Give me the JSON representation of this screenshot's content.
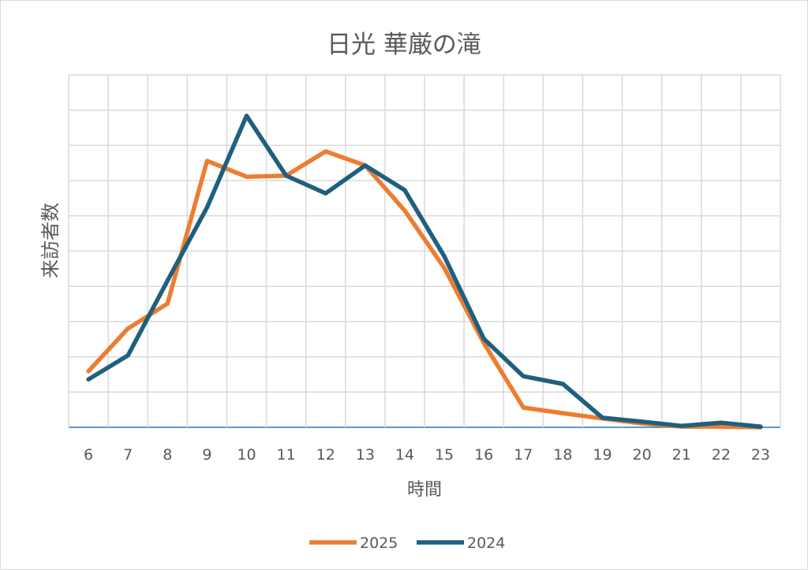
{
  "chart_data": {
    "type": "line",
    "title": "日光 華厳の滝",
    "xlabel": "時間",
    "ylabel": "来訪者数",
    "categories": [
      "6",
      "7",
      "8",
      "9",
      "10",
      "11",
      "12",
      "13",
      "14",
      "15",
      "16",
      "17",
      "18",
      "19",
      "20",
      "21",
      "22",
      "23"
    ],
    "ylim": [
      0,
      10
    ],
    "y_tick_labels_shown": false,
    "grid": true,
    "legend_position": "bottom",
    "series": [
      {
        "name": "2025",
        "color": "#ED7D31",
        "values": [
          1.59,
          2.8,
          3.51,
          7.56,
          7.11,
          7.14,
          7.83,
          7.43,
          6.15,
          4.52,
          2.39,
          0.56,
          0.4,
          0.25,
          0.11,
          0.02,
          0.02,
          0.0
        ]
      },
      {
        "name": "2024",
        "color": "#1F5F7F",
        "values": [
          1.36,
          2.04,
          4.16,
          6.24,
          8.84,
          7.14,
          6.64,
          7.43,
          6.73,
          4.85,
          2.51,
          1.45,
          1.23,
          0.27,
          0.16,
          0.04,
          0.13,
          0.02
        ]
      }
    ]
  }
}
